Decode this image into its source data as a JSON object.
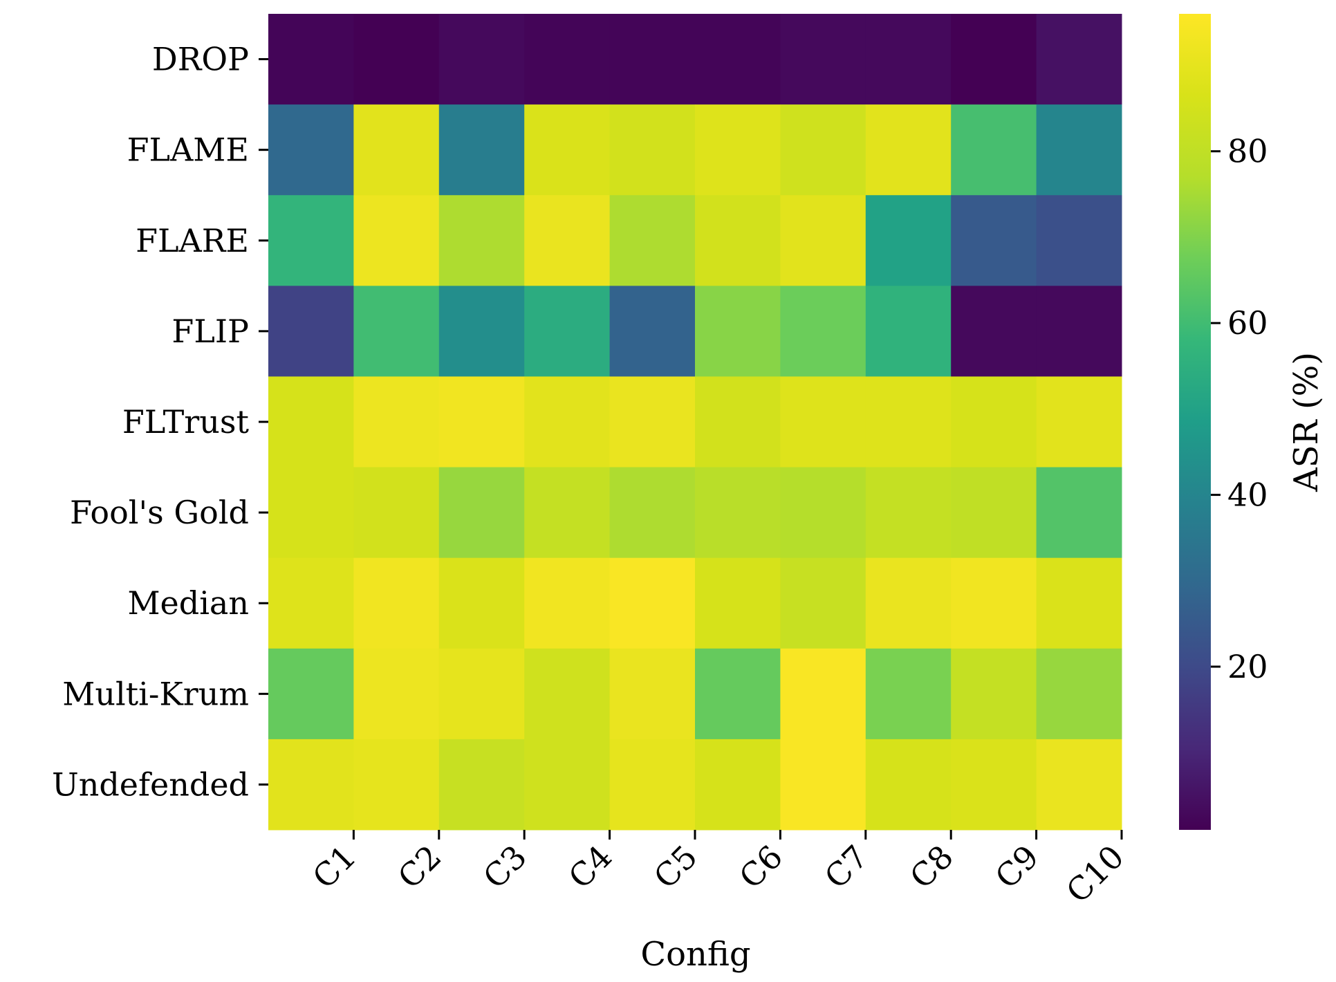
{
  "chart_data": {
    "type": "heatmap",
    "title": "",
    "xlabel": "Config",
    "ylabel": "",
    "x_categories": [
      "C1",
      "C2",
      "C3",
      "C4",
      "C5",
      "C6",
      "C7",
      "C8",
      "C9",
      "C10"
    ],
    "y_categories": [
      "DROP",
      "FLAME",
      "FLARE",
      "FLIP",
      "FLTrust",
      "Fool's Gold",
      "Median",
      "Multi-Krum",
      "Undefended"
    ],
    "values": [
      [
        2,
        1,
        3,
        2,
        2,
        2,
        3,
        3,
        1,
        5
      ],
      [
        30,
        89,
        37,
        87,
        85,
        88,
        84,
        89,
        61,
        40
      ],
      [
        57,
        92,
        76,
        91,
        76,
        85,
        89,
        50,
        25,
        22
      ],
      [
        18,
        60,
        43,
        54,
        28,
        71,
        67,
        56,
        3,
        3
      ],
      [
        86,
        92,
        93,
        89,
        91,
        85,
        88,
        88,
        86,
        89
      ],
      [
        86,
        85,
        73,
        81,
        76,
        78,
        77,
        81,
        80,
        63
      ],
      [
        88,
        93,
        87,
        93,
        95,
        86,
        82,
        91,
        93,
        87
      ],
      [
        66,
        92,
        90,
        84,
        91,
        66,
        95,
        69,
        81,
        73
      ],
      [
        89,
        90,
        82,
        84,
        90,
        86,
        95,
        86,
        87,
        91
      ]
    ],
    "colormap": "viridis",
    "colorbar": {
      "label": "ASR (%)",
      "min": 1,
      "max": 96,
      "ticks": [
        "20",
        "40",
        "60",
        "80"
      ]
    }
  }
}
